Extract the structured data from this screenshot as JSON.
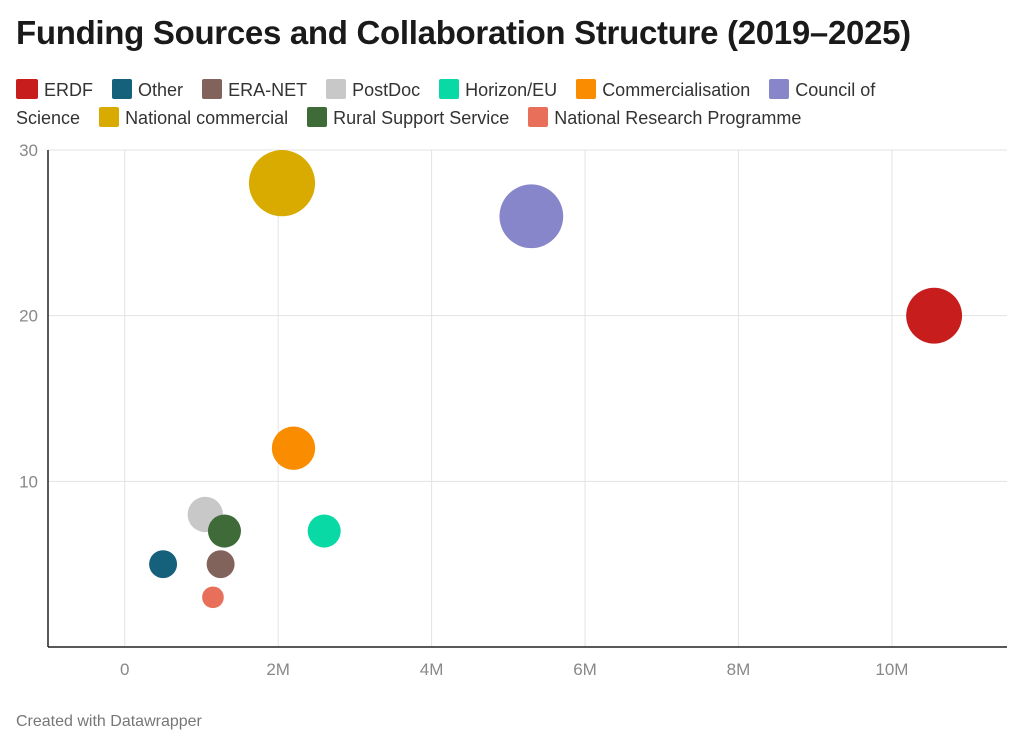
{
  "chart_data": {
    "type": "scatter",
    "title": "Funding Sources and Collaboration Structure (2019–2025)",
    "xlabel": "",
    "ylabel": "",
    "xlim": [
      -1000000,
      11500000
    ],
    "ylim": [
      0,
      30
    ],
    "x_ticks": [
      {
        "value": 0,
        "label": "0"
      },
      {
        "value": 2000000,
        "label": "2M"
      },
      {
        "value": 4000000,
        "label": "4M"
      },
      {
        "value": 6000000,
        "label": "6M"
      },
      {
        "value": 8000000,
        "label": "8M"
      },
      {
        "value": 10000000,
        "label": "10M"
      }
    ],
    "y_ticks": [
      {
        "value": 10,
        "label": "10"
      },
      {
        "value": 20,
        "label": "20"
      },
      {
        "value": 30,
        "label": "30"
      }
    ],
    "grid": true,
    "legend_position": "top",
    "series": [
      {
        "name": "ERDF",
        "color": "#c71e1d",
        "x": 10550000,
        "y": 20,
        "size": 20
      },
      {
        "name": "Other",
        "color": "#15607a",
        "x": 500000,
        "y": 5,
        "size": 5
      },
      {
        "name": "ERA-NET",
        "color": "#81635b",
        "x": 1250000,
        "y": 5,
        "size": 5
      },
      {
        "name": "PostDoc",
        "color": "#c8c8c8",
        "x": 1050000,
        "y": 8,
        "size": 8
      },
      {
        "name": "Horizon/EU",
        "color": "#09d9a4",
        "x": 2600000,
        "y": 7,
        "size": 7
      },
      {
        "name": "Commercialisation",
        "color": "#fa8c00",
        "x": 2200000,
        "y": 12,
        "size": 12
      },
      {
        "name": "Council of Science",
        "color": "#8886ca",
        "x": 5300000,
        "y": 26,
        "size": 26
      },
      {
        "name": "National commercial",
        "color": "#d9ab00",
        "x": 2050000,
        "y": 28,
        "size": 28
      },
      {
        "name": "Rural Support Service",
        "color": "#3f6b39",
        "x": 1300000,
        "y": 7,
        "size": 7
      },
      {
        "name": "National Research Programme",
        "color": "#e8705a",
        "x": 1150000,
        "y": 3,
        "size": 3
      }
    ]
  },
  "footer": {
    "credit": "Created with Datawrapper"
  }
}
